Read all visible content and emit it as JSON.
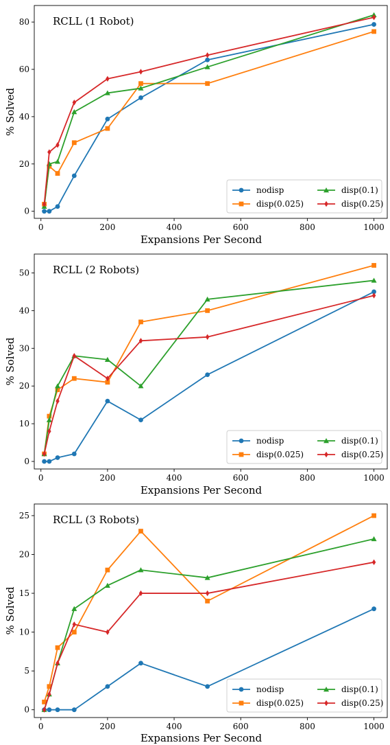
{
  "chart_data": [
    {
      "type": "line",
      "title": "RCLL (1 Robot)",
      "xlabel": "Expansions Per Second",
      "ylabel": "% Solved",
      "xlim": [
        -20,
        1040
      ],
      "ylim": [
        -3,
        87
      ],
      "xticks": [
        0,
        200,
        400,
        600,
        800,
        1000
      ],
      "yticks": [
        0,
        20,
        40,
        60,
        80
      ],
      "x": [
        10,
        25,
        50,
        100,
        200,
        300,
        500,
        1000
      ],
      "legend_position": "lower-right",
      "grid": false,
      "series": [
        {
          "name": "nodisp",
          "color": "#1f77b4",
          "marker": "circle",
          "values": [
            0,
            0,
            2,
            15,
            39,
            48,
            64,
            79
          ]
        },
        {
          "name": "disp(0.025)",
          "color": "#ff7f0e",
          "marker": "square",
          "values": [
            3,
            19,
            16,
            29,
            35,
            54,
            54,
            76
          ]
        },
        {
          "name": "disp(0.1)",
          "color": "#2ca02c",
          "marker": "triangle",
          "values": [
            2,
            20,
            21,
            42,
            50,
            52,
            61,
            83
          ]
        },
        {
          "name": "disp(0.25)",
          "color": "#d62728",
          "marker": "diamond",
          "values": [
            3,
            25,
            28,
            46,
            56,
            59,
            66,
            82
          ]
        }
      ]
    },
    {
      "type": "line",
      "title": "RCLL (2 Robots)",
      "xlabel": "Expansions Per Second",
      "ylabel": "% Solved",
      "xlim": [
        -20,
        1040
      ],
      "ylim": [
        -2,
        55
      ],
      "xticks": [
        0,
        200,
        400,
        600,
        800,
        1000
      ],
      "yticks": [
        0,
        10,
        20,
        30,
        40,
        50
      ],
      "x": [
        10,
        25,
        50,
        100,
        200,
        300,
        500,
        1000
      ],
      "legend_position": "lower-right",
      "grid": false,
      "series": [
        {
          "name": "nodisp",
          "color": "#1f77b4",
          "marker": "circle",
          "values": [
            0,
            0,
            1,
            2,
            16,
            11,
            23,
            45
          ]
        },
        {
          "name": "disp(0.025)",
          "color": "#ff7f0e",
          "marker": "square",
          "values": [
            2,
            12,
            19,
            22,
            21,
            37,
            40,
            52
          ]
        },
        {
          "name": "disp(0.1)",
          "color": "#2ca02c",
          "marker": "triangle",
          "values": [
            2,
            11,
            20,
            28,
            27,
            20,
            43,
            48
          ]
        },
        {
          "name": "disp(0.25)",
          "color": "#d62728",
          "marker": "diamond",
          "values": [
            2,
            8,
            16,
            28,
            22,
            32,
            33,
            44
          ]
        }
      ]
    },
    {
      "type": "line",
      "title": "RCLL (3 Robots)",
      "xlabel": "Expansions Per Second",
      "ylabel": "% Solved",
      "xlim": [
        -20,
        1040
      ],
      "ylim": [
        -1,
        26.5
      ],
      "xticks": [
        0,
        200,
        400,
        600,
        800,
        1000
      ],
      "yticks": [
        0,
        5,
        10,
        15,
        20,
        25
      ],
      "x": [
        10,
        25,
        50,
        100,
        200,
        300,
        500,
        1000
      ],
      "legend_position": "lower-right",
      "grid": false,
      "series": [
        {
          "name": "nodisp",
          "color": "#1f77b4",
          "marker": "circle",
          "values": [
            0,
            0,
            0,
            0,
            3,
            6,
            3,
            13
          ]
        },
        {
          "name": "disp(0.025)",
          "color": "#ff7f0e",
          "marker": "square",
          "values": [
            1,
            3,
            8,
            10,
            18,
            23,
            14,
            25
          ]
        },
        {
          "name": "disp(0.1)",
          "color": "#2ca02c",
          "marker": "triangle",
          "values": [
            0,
            2,
            6,
            13,
            16,
            18,
            17,
            22
          ]
        },
        {
          "name": "disp(0.25)",
          "color": "#d62728",
          "marker": "diamond",
          "values": [
            0,
            2,
            6,
            11,
            10,
            15,
            15,
            19
          ]
        }
      ]
    }
  ]
}
